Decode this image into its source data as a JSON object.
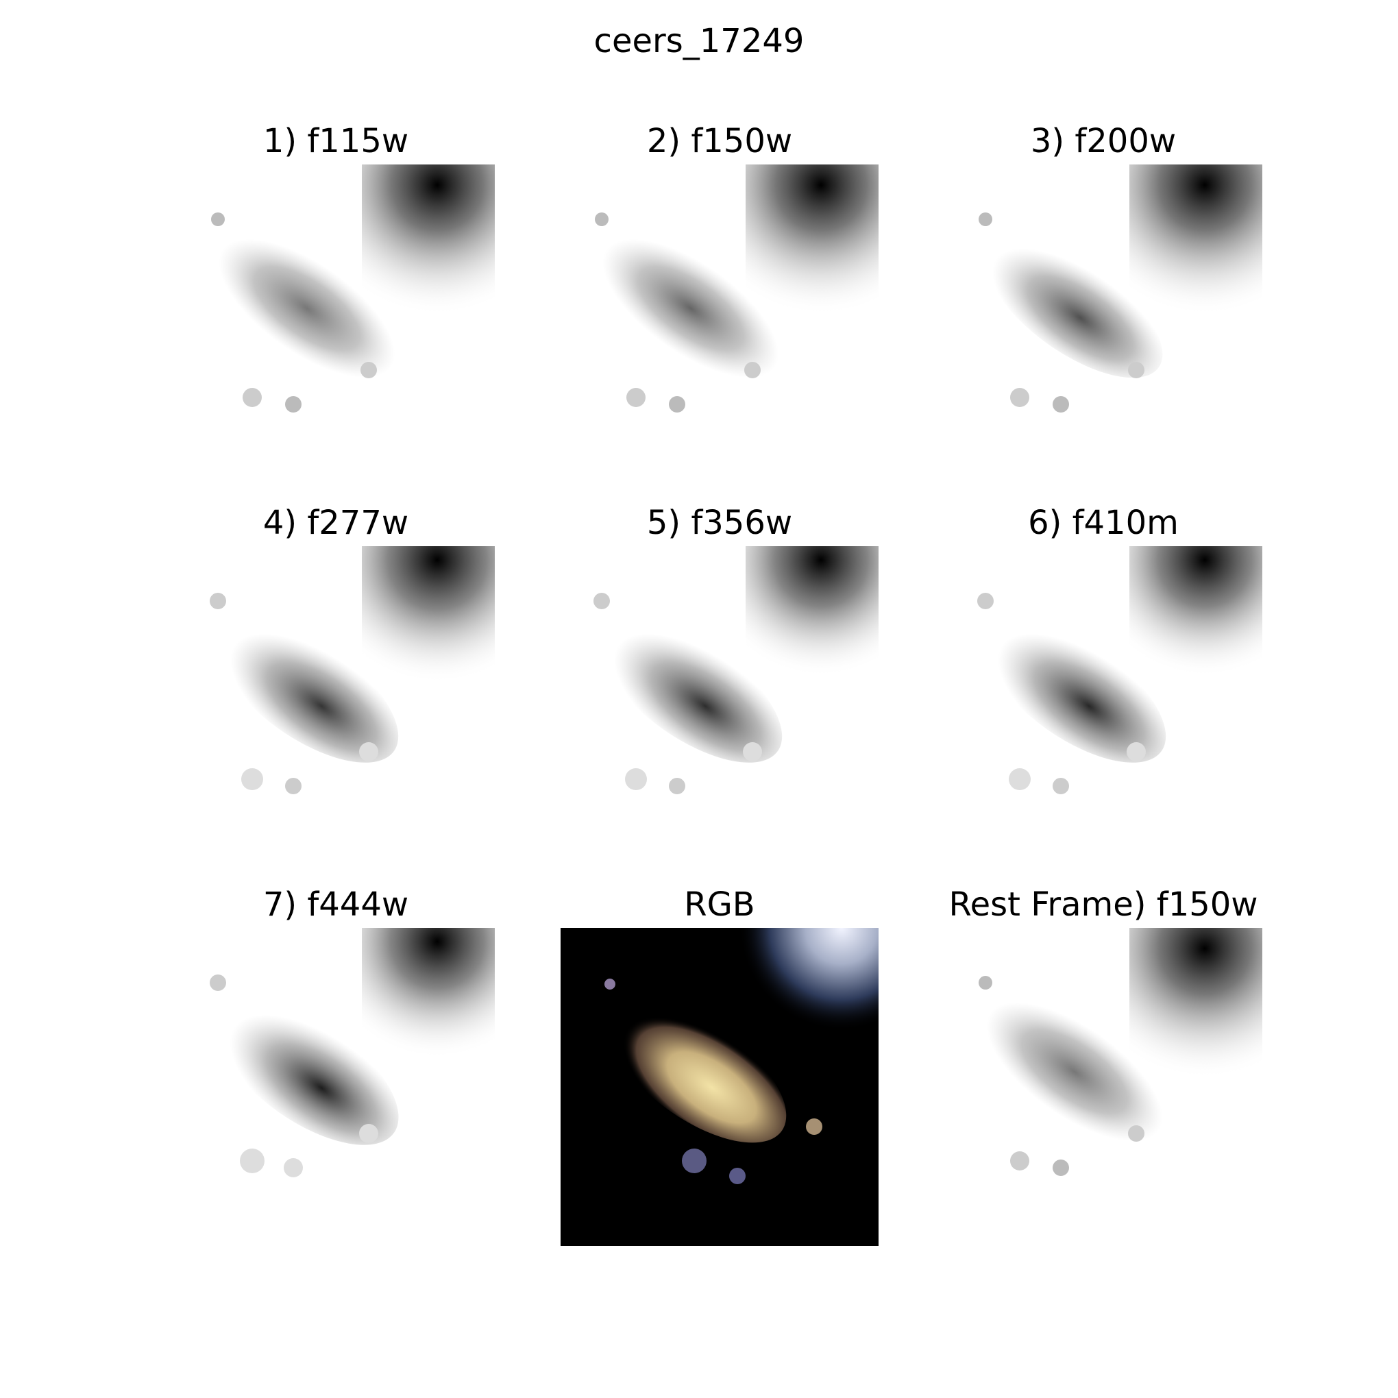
{
  "figure": {
    "title": "ceers_17249"
  },
  "panels": [
    {
      "title": "1) f115w",
      "kind": "grayscale"
    },
    {
      "title": "2) f150w",
      "kind": "grayscale"
    },
    {
      "title": "3) f200w",
      "kind": "grayscale"
    },
    {
      "title": "4) f277w",
      "kind": "grayscale"
    },
    {
      "title": "5) f356w",
      "kind": "grayscale"
    },
    {
      "title": "6) f410m",
      "kind": "grayscale"
    },
    {
      "title": "7) f444w",
      "kind": "grayscale"
    },
    {
      "title": "RGB",
      "kind": "color"
    },
    {
      "title": "Rest Frame) f150w",
      "kind": "grayscale"
    }
  ],
  "colors": {
    "background": "#ffffff",
    "rgb_background": "#000000",
    "galaxy_core": "#f2e2a8",
    "companion_core": "#e8eeff"
  }
}
